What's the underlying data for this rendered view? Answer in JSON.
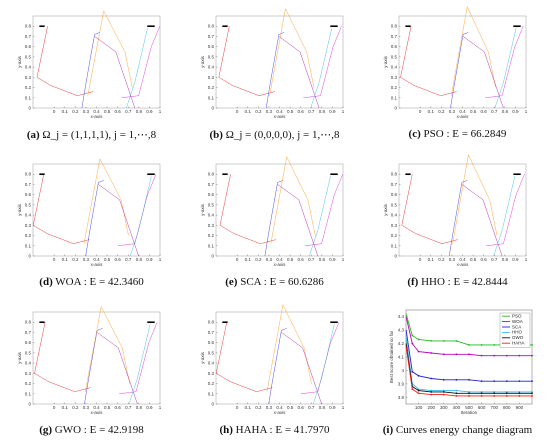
{
  "panels": [
    {
      "id": "a",
      "label": "(a)",
      "text": "Ω_j = (1,1,1,1), j = 1,⋯,8",
      "variant": 0
    },
    {
      "id": "b",
      "label": "(b)",
      "text": "Ω_j = (0,0,0,0), j = 1,⋯,8",
      "variant": 1
    },
    {
      "id": "c",
      "label": "(c)",
      "text": "PSO  : E = 66.2849",
      "variant": 2
    },
    {
      "id": "d",
      "label": "(d)",
      "text": "WOA  : E = 42.3460",
      "variant": 3
    },
    {
      "id": "e",
      "label": "(e)",
      "text": "SCA  : E = 60.6286",
      "variant": 4
    },
    {
      "id": "f",
      "label": "(f)",
      "text": "HHO  : E = 42.8444",
      "variant": 5
    },
    {
      "id": "g",
      "label": "(g)",
      "text": "GWO  : E = 42.9198",
      "variant": 6
    },
    {
      "id": "h",
      "label": "(h)",
      "text": "HAHA  : E = 41.7970",
      "variant": 7
    },
    {
      "id": "i",
      "label": "(i)",
      "text": "Curves energy change diagram",
      "variant": 8
    }
  ],
  "curve_axes": {
    "xlabel": "x-axis",
    "ylabel": "y-axis",
    "xticks": [
      "0",
      "0.1",
      "0.2",
      "0.3",
      "0.4",
      "0.5",
      "0.6",
      "0.7",
      "0.8",
      "0.9",
      "1"
    ],
    "yticks": [
      "0",
      "0.1",
      "0.2",
      "0.3",
      "0.4",
      "0.5",
      "0.6",
      "0.7",
      "0.8"
    ],
    "xlim": [
      -0.2,
      1.0
    ],
    "ylim": [
      0,
      0.9
    ]
  },
  "colors": {
    "segment1": "#7cf000",
    "segment2": "#e00000",
    "segment3": "#1a1adc",
    "segment4": "#ff8c00",
    "segment5": "#9a0090",
    "segment6": "#d010d0",
    "segment7": "#18b0e0",
    "endpoint": "#000000"
  },
  "chart_data": {
    "type": "line",
    "xlabel": "Iteration",
    "ylabel": "Best score obtained so far",
    "xticks": [
      "100",
      "200",
      "300",
      "400",
      "500",
      "600",
      "700",
      "800",
      "900"
    ],
    "yticks": [
      "3.8",
      "3.9",
      "4",
      "4.1",
      "4.2",
      "4.3",
      "4.4"
    ],
    "xlim": [
      0,
      1000
    ],
    "ylim": [
      3.75,
      4.45
    ],
    "legend": "top-right",
    "x": [
      1,
      50,
      100,
      200,
      300,
      400,
      500,
      600,
      700,
      800,
      900,
      1000
    ],
    "series": [
      {
        "name": "PSO",
        "color": "#22bb22",
        "values": [
          4.42,
          4.26,
          4.23,
          4.22,
          4.22,
          4.22,
          4.19,
          4.19,
          4.19,
          4.19,
          4.19,
          4.19
        ]
      },
      {
        "name": "WOA",
        "color": "#bb00bb",
        "values": [
          4.4,
          4.2,
          4.14,
          4.13,
          4.12,
          4.12,
          4.12,
          4.11,
          4.11,
          4.11,
          4.11,
          4.11
        ]
      },
      {
        "name": "SCA",
        "color": "#2222cc",
        "values": [
          4.3,
          3.99,
          3.96,
          3.94,
          3.93,
          3.93,
          3.93,
          3.92,
          3.92,
          3.92,
          3.92,
          3.92
        ]
      },
      {
        "name": "HHO",
        "color": "#33bbee",
        "values": [
          4.25,
          3.9,
          3.86,
          3.85,
          3.85,
          3.85,
          3.84,
          3.84,
          3.84,
          3.84,
          3.84,
          3.84
        ]
      },
      {
        "name": "GWO",
        "color": "#111111",
        "values": [
          4.2,
          3.88,
          3.85,
          3.84,
          3.84,
          3.83,
          3.83,
          3.83,
          3.83,
          3.83,
          3.83,
          3.83
        ]
      },
      {
        "name": "HAHA",
        "color": "#ee2222",
        "values": [
          4.18,
          3.86,
          3.83,
          3.82,
          3.82,
          3.81,
          3.81,
          3.81,
          3.81,
          3.81,
          3.81,
          3.81
        ]
      }
    ]
  }
}
